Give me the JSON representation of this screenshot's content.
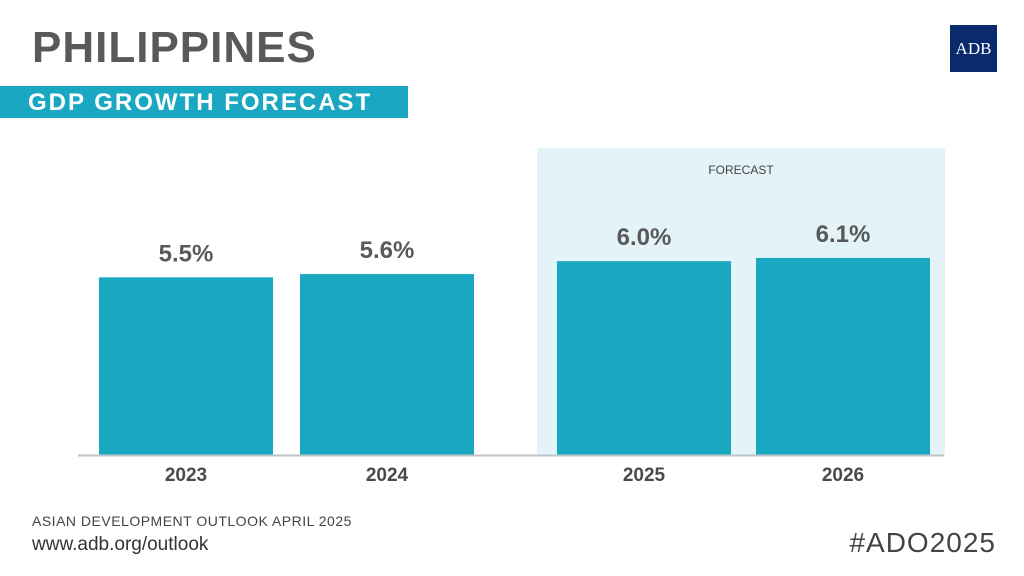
{
  "header": {
    "country": "PHILIPPINES",
    "subtitle": "GDP GROWTH FORECAST",
    "logo_text": "ADB"
  },
  "colors": {
    "bar": "#1aa7c1",
    "forecast_band": "#e3f3f7",
    "text_dark": "#58595b",
    "logo_bg": "#0a2a6e"
  },
  "chart_data": {
    "type": "bar",
    "categories": [
      "2023",
      "2024",
      "2025",
      "2026"
    ],
    "values": [
      5.5,
      5.6,
      6.0,
      6.1
    ],
    "value_labels": [
      "5.5%",
      "5.6%",
      "6.0%",
      "6.1%"
    ],
    "forecast_label": "FORECAST",
    "forecast_categories": [
      "2025",
      "2026"
    ],
    "ylim": [
      0,
      6.5
    ],
    "grid": false,
    "legend": "none"
  },
  "footer": {
    "source": "ASIAN DEVELOPMENT OUTLOOK APRIL 2025",
    "url": "www.adb.org/outlook",
    "hashtag": "#ADO2025"
  }
}
